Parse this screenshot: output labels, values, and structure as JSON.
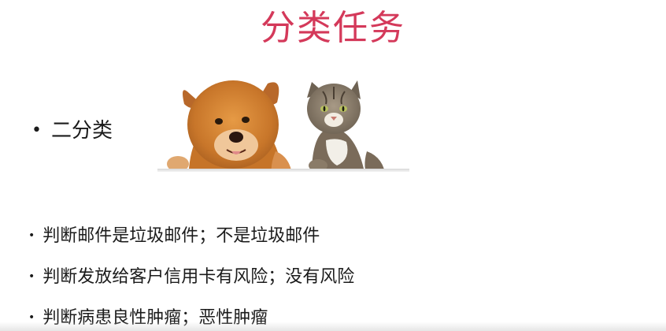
{
  "slide": {
    "title": "分类任务",
    "main_bullet": "二分类",
    "bullet_glyph": "•",
    "examples": [
      "判断邮件是垃圾邮件；不是垃圾邮件",
      "判断发放给客户信用卡有风险；没有风险",
      "判断病患良性肿瘤；恶性肿瘤"
    ]
  },
  "colors": {
    "title": "#d4395a",
    "text": "#1b1b1b"
  }
}
